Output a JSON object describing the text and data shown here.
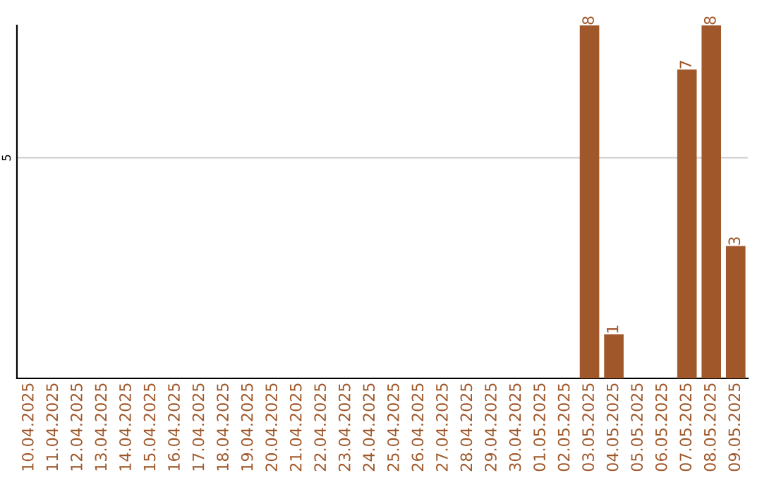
{
  "chart_data": {
    "type": "bar",
    "categories": [
      "10.04.2025",
      "11.04.2025",
      "12.04.2025",
      "13.04.2025",
      "14.04.2025",
      "15.04.2025",
      "16.04.2025",
      "17.04.2025",
      "18.04.2025",
      "19.04.2025",
      "20.04.2025",
      "21.04.2025",
      "22.04.2025",
      "23.04.2025",
      "24.04.2025",
      "25.04.2025",
      "26.04.2025",
      "27.04.2025",
      "28.04.2025",
      "29.04.2025",
      "30.04.2025",
      "01.05.2025",
      "02.05.2025",
      "03.05.2025",
      "04.05.2025",
      "05.05.2025",
      "06.05.2025",
      "07.05.2025",
      "08.05.2025",
      "09.05.2025"
    ],
    "values": [
      null,
      null,
      null,
      null,
      null,
      null,
      null,
      null,
      null,
      null,
      null,
      null,
      null,
      null,
      null,
      null,
      null,
      null,
      null,
      null,
      null,
      null,
      null,
      8,
      1,
      null,
      null,
      7,
      8,
      3
    ],
    "color": "#a0582a",
    "ylim": [
      0,
      8
    ],
    "yticks": [
      5
    ],
    "grid": "y",
    "data_labels": true,
    "legend": false
  }
}
